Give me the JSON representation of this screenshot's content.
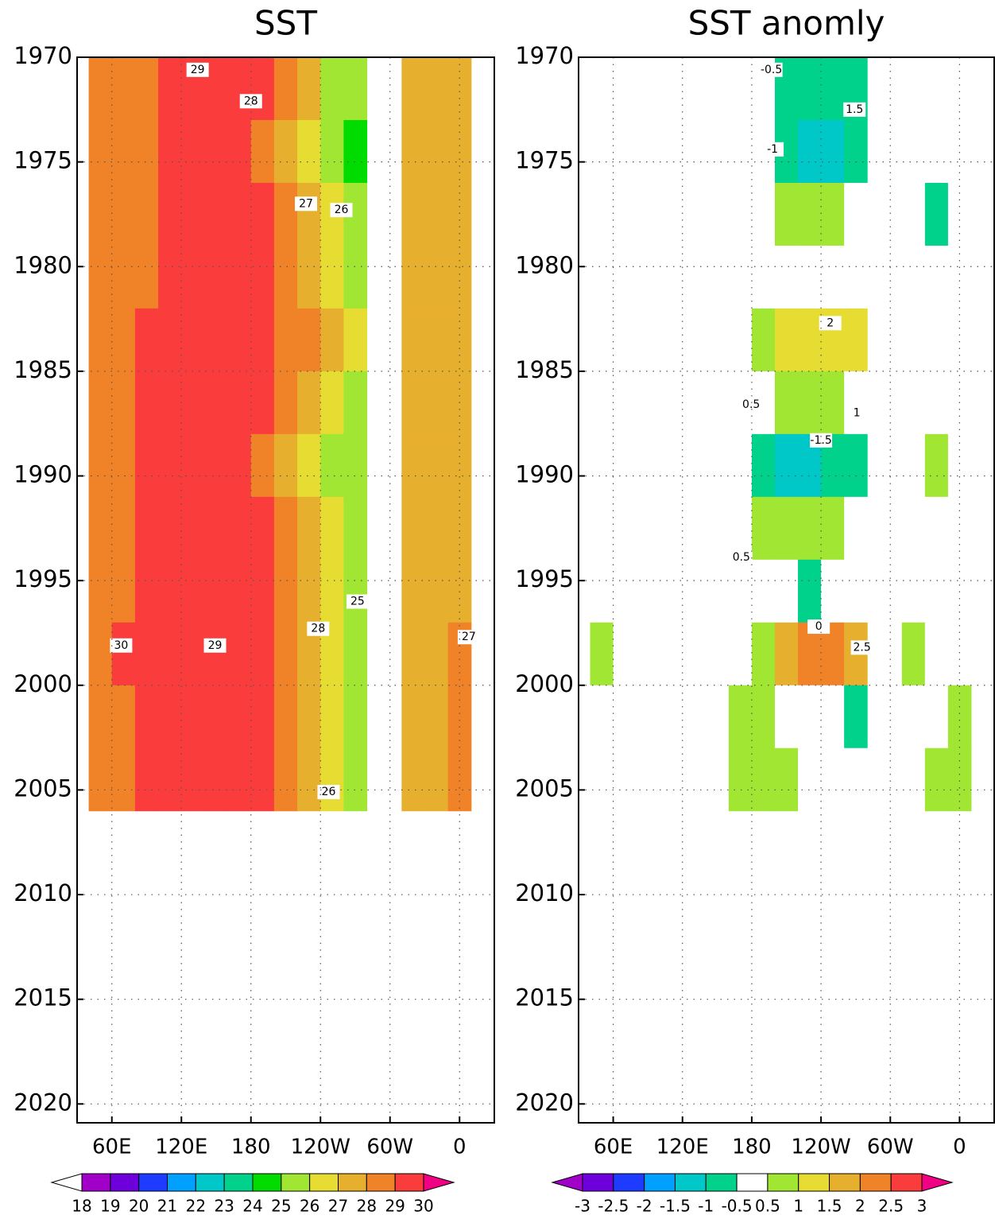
{
  "chart_data": [
    {
      "type": "heatmap",
      "title": "SST",
      "xlim": [
        30,
        390
      ],
      "ylim": [
        1970,
        2020.9
      ],
      "y_inverted": true,
      "grid": true,
      "xticks": [
        {
          "value": 60,
          "label": "60E"
        },
        {
          "value": 120,
          "label": "120E"
        },
        180,
        {
          "value": 240,
          "label": "120W"
        },
        {
          "value": 300,
          "label": "60W"
        },
        {
          "value": 360,
          "label": "0"
        }
      ],
      "yticks": [
        1970,
        1975,
        1980,
        1985,
        1990,
        1995,
        2000,
        2005,
        2010,
        2015,
        2020
      ],
      "ybins": [
        1970,
        1973,
        1976,
        1979,
        1982,
        1985,
        1988,
        1991,
        1994,
        1997,
        2000,
        2003,
        2006
      ],
      "blocks": [
        {
          "xbins": [
            40,
            60,
            80,
            100,
            120,
            140,
            160,
            180,
            200,
            220,
            240,
            260,
            280
          ],
          "z": [
            [
              28.2,
              28.6,
              28.9,
              29.1,
              29.2,
              29.4,
              29.5,
              29.0,
              28.0,
              27.0,
              25.8,
              25.2
            ],
            [
              28.0,
              28.4,
              28.7,
              29.0,
              29.1,
              29.2,
              29.1,
              28.5,
              27.4,
              26.3,
              25.4,
              24.8
            ],
            [
              28.1,
              28.5,
              28.8,
              29.1,
              29.2,
              29.4,
              29.4,
              29.0,
              28.1,
              27.2,
              26.1,
              25.4
            ],
            [
              28.3,
              28.6,
              28.9,
              29.1,
              29.3,
              29.4,
              29.4,
              29.1,
              28.3,
              27.3,
              26.2,
              25.6
            ],
            [
              28.4,
              28.8,
              29.0,
              29.1,
              29.2,
              29.3,
              29.6,
              29.4,
              28.9,
              28.0,
              27.0,
              26.2
            ],
            [
              28.4,
              28.7,
              29.0,
              29.2,
              29.3,
              29.5,
              29.6,
              29.3,
              28.6,
              27.6,
              26.5,
              25.7
            ],
            [
              28.3,
              28.7,
              29.0,
              29.2,
              29.4,
              29.5,
              29.3,
              28.8,
              27.8,
              26.8,
              25.7,
              25.0
            ],
            [
              28.5,
              28.8,
              29.0,
              29.2,
              29.4,
              29.6,
              29.7,
              29.4,
              28.7,
              27.7,
              26.6,
              25.9
            ],
            [
              28.6,
              28.9,
              29.1,
              29.3,
              29.4,
              29.6,
              29.5,
              29.0,
              28.0,
              27.0,
              26.0,
              25.3
            ],
            [
              28.7,
              29.0,
              29.1,
              29.3,
              29.4,
              29.5,
              29.4,
              29.2,
              28.5,
              27.6,
              26.5,
              25.6
            ],
            [
              28.5,
              28.8,
              29.0,
              29.2,
              29.4,
              29.6,
              29.5,
              29.1,
              28.3,
              27.3,
              26.2,
              25.5
            ],
            [
              28.6,
              28.9,
              29.1,
              29.3,
              29.5,
              29.6,
              29.6,
              29.2,
              28.4,
              27.4,
              26.4,
              25.7
            ]
          ]
        },
        {
          "xbins": [
            310,
            330,
            350,
            370
          ],
          "z": [
            [
              27.2,
              27.5,
              27.6
            ],
            [
              27.0,
              27.3,
              27.5
            ],
            [
              27.1,
              27.4,
              27.7
            ],
            [
              27.2,
              27.5,
              27.6
            ],
            [
              27.3,
              27.6,
              27.8
            ],
            [
              27.2,
              27.4,
              27.6
            ],
            [
              27.3,
              27.6,
              27.9
            ],
            [
              27.1,
              27.4,
              27.6
            ],
            [
              27.3,
              27.6,
              27.8
            ],
            [
              27.5,
              27.8,
              28.0
            ],
            [
              27.4,
              27.7,
              28.0
            ],
            [
              27.5,
              27.8,
              28.1
            ]
          ]
        }
      ],
      "contour_labels": [
        {
          "lon": 134,
          "year": 1970.6,
          "value": 29
        },
        {
          "lon": 180,
          "year": 1972.1,
          "value": 28
        },
        {
          "lon": 227.5,
          "year": 1977,
          "value": 27
        },
        {
          "lon": 258,
          "year": 1977.3,
          "value": 26
        },
        {
          "lon": 272,
          "year": 1996,
          "value": 25
        },
        {
          "lon": 238,
          "year": 1997.3,
          "value": 28
        },
        {
          "lon": 68,
          "year": 1998.1,
          "value": 30
        },
        {
          "lon": 149,
          "year": 1998.1,
          "value": 29
        },
        {
          "lon": 368,
          "year": 1997.7,
          "value": 27
        },
        {
          "lon": 247,
          "year": 2005.1,
          "value": 26
        }
      ],
      "colorbar": {
        "levels": [
          18,
          19,
          20,
          21,
          22,
          23,
          24,
          25,
          26,
          27,
          28,
          29,
          30
        ],
        "colors": [
          "#a000c8",
          "#6e00dc",
          "#1e3cff",
          "#00a0ff",
          "#00c8c8",
          "#00d28c",
          "#00dc00",
          "#a0e632",
          "#e6dc32",
          "#e6af2d",
          "#f08228",
          "#fa3c3c"
        ],
        "under_color": "#ffffff",
        "over_color": "#f00082"
      }
    },
    {
      "type": "heatmap",
      "title": "SST anomly",
      "xlim": [
        30,
        390
      ],
      "ylim": [
        1970,
        2020.9
      ],
      "y_inverted": true,
      "grid": true,
      "xticks": [
        {
          "value": 60,
          "label": "60E"
        },
        {
          "value": 120,
          "label": "120E"
        },
        180,
        {
          "value": 240,
          "label": "120W"
        },
        {
          "value": 300,
          "label": "60W"
        },
        {
          "value": 360,
          "label": "0"
        }
      ],
      "yticks": [
        1970,
        1975,
        1980,
        1985,
        1990,
        1995,
        2000,
        2005,
        2010,
        2015,
        2020
      ],
      "ybins": [
        1970,
        1973,
        1976,
        1979,
        1982,
        1985,
        1988,
        1991,
        1994,
        1997,
        2000,
        2003,
        2006
      ],
      "blocks": [
        {
          "xbins": [
            40,
            60,
            80,
            100,
            120,
            140,
            160,
            180,
            200,
            220,
            240,
            260,
            280
          ],
          "z": [
            [
              0.2,
              0.1,
              0,
              0,
              -0.1,
              -0.2,
              -0.3,
              -0.4,
              -0.6,
              -0.8,
              -0.9,
              -0.7
            ],
            [
              -0.2,
              -0.1,
              -0.2,
              0,
              0.1,
              0.2,
              0.1,
              -0.4,
              -0.8,
              -1.1,
              -1.2,
              -1.0
            ],
            [
              -0.3,
              -0.2,
              -0.1,
              0,
              0,
              0.1,
              0.2,
              0.3,
              0.5,
              0.6,
              0.5,
              0.3
            ],
            [
              0,
              0.1,
              0,
              0.1,
              0,
              0,
              0.1,
              0.2,
              0.2,
              0.1,
              0,
              -0.2
            ],
            [
              0.1,
              0.2,
              0.1,
              0,
              -0.2,
              -0.3,
              0.3,
              0.7,
              1.2,
              1.4,
              1.3,
              1.1
            ],
            [
              0.1,
              0.2,
              0.1,
              0,
              -0.1,
              -0.1,
              0.2,
              0.4,
              0.7,
              0.8,
              0.6,
              0.4
            ],
            [
              -0.1,
              -0.2,
              -0.1,
              0,
              0.1,
              0.2,
              -0.3,
              -0.7,
              -1.1,
              -1.2,
              -1.0,
              -0.7
            ],
            [
              0.1,
              0.2,
              0.1,
              0.1,
              0,
              -0.1,
              0.2,
              0.6,
              0.8,
              0.7,
              0.6,
              0.4
            ],
            [
              0.2,
              0.1,
              0,
              0.1,
              0.2,
              0.1,
              0,
              -0.2,
              -0.4,
              -0.6,
              -0.5,
              -0.3
            ],
            [
              0.6,
              0.4,
              0.3,
              0.1,
              -0.2,
              -0.4,
              0.2,
              0.8,
              1.6,
              2.2,
              2.4,
              1.8
            ],
            [
              0.3,
              0.4,
              0.2,
              0.1,
              0.1,
              0.3,
              0.6,
              0.5,
              0.2,
              -0.1,
              -0.4,
              -0.6
            ],
            [
              0.4,
              0.3,
              0.2,
              0.3,
              0.2,
              0.3,
              0.5,
              0.7,
              0.6,
              0.4,
              0.2,
              0.1
            ]
          ]
        },
        {
          "xbins": [
            310,
            330,
            350,
            370
          ],
          "z": [
            [
              0,
              0.1,
              0.2
            ],
            [
              -0.2,
              -0.1,
              0
            ],
            [
              -0.3,
              -0.6,
              -0.2
            ],
            [
              0,
              0.1,
              0
            ],
            [
              0.1,
              0.2,
              0.3
            ],
            [
              0,
              0.1,
              0.2
            ],
            [
              0.3,
              0.6,
              0.4
            ],
            [
              0.1,
              0,
              0.2
            ],
            [
              0.2,
              0.3,
              0.1
            ],
            [
              0.6,
              0.4,
              0.3
            ],
            [
              0.3,
              0.4,
              0.5
            ],
            [
              0.4,
              0.5,
              0.6
            ]
          ]
        }
      ],
      "contour_labels": [
        {
          "lon": 197,
          "year": 1970.6,
          "value": -0.5
        },
        {
          "lon": 269,
          "year": 1972.5,
          "value": 1.5
        },
        {
          "lon": 198,
          "year": 1974.4,
          "value": -1
        },
        {
          "lon": 248,
          "year": 1982.7,
          "value": 2
        },
        {
          "lon": 179.5,
          "year": 1986.6,
          "value": 0.5
        },
        {
          "lon": 240,
          "year": 1988.3,
          "value": -1.5
        },
        {
          "lon": 271,
          "year": 1987,
          "value": 1
        },
        {
          "lon": 238,
          "year": 1997.2,
          "value": 0
        },
        {
          "lon": 275.5,
          "year": 1998.2,
          "value": 2.5
        },
        {
          "lon": 171,
          "year": 1993.9,
          "value": 0.5
        }
      ],
      "colorbar": {
        "levels": [
          -3,
          -2.5,
          -2,
          -1.5,
          -1,
          -0.5,
          0.5,
          1,
          1.5,
          2,
          2.5,
          3
        ],
        "colors": [
          "#6e00dc",
          "#1e3cff",
          "#00a0ff",
          "#00c8c8",
          "#00d28c",
          "#ffffff",
          "#a0e632",
          "#e6dc32",
          "#e6af2d",
          "#f08228",
          "#fa3c3c"
        ],
        "under_color": "#a000c8",
        "over_color": "#f00082"
      }
    }
  ]
}
